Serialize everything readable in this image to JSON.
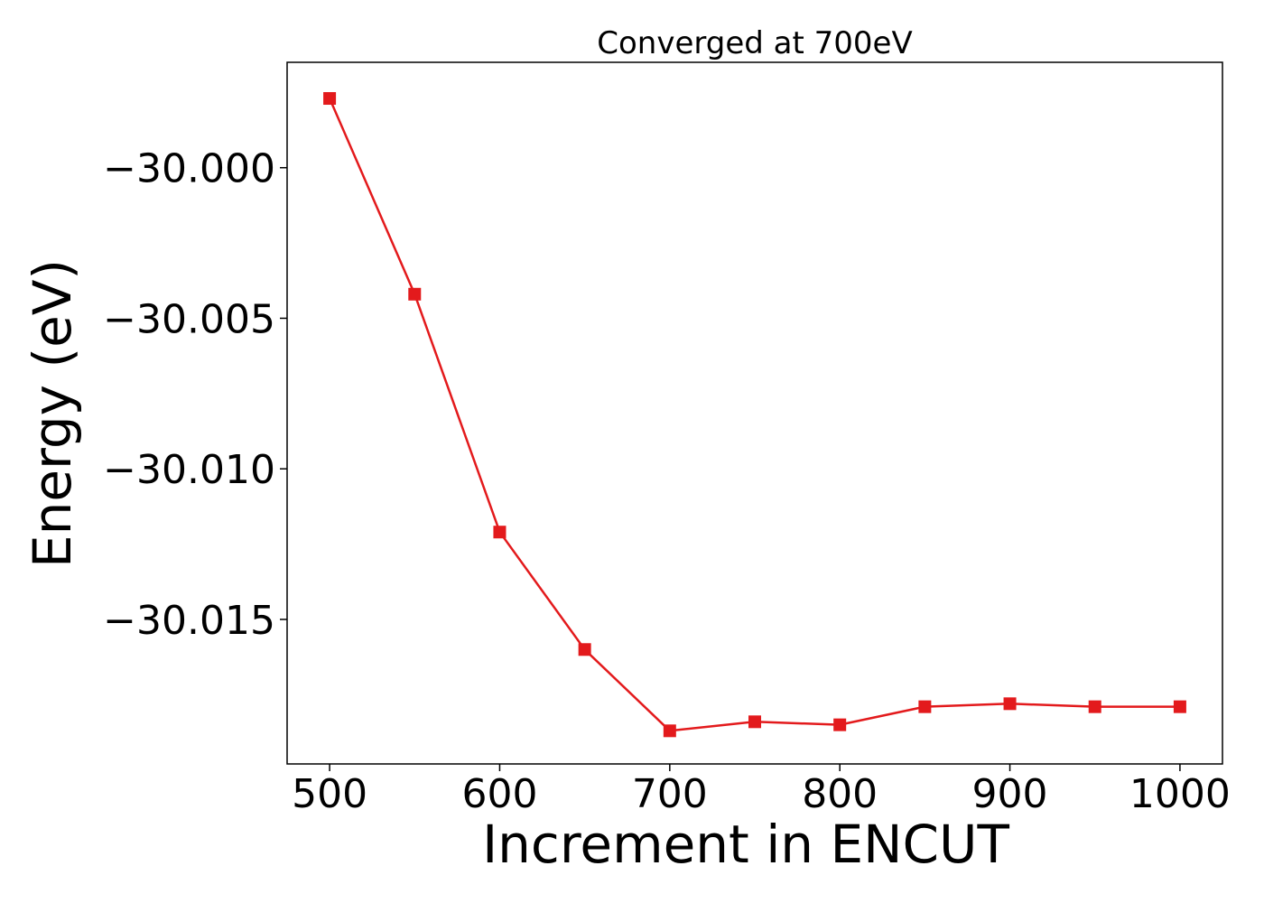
{
  "chart_data": {
    "type": "line",
    "title": "Converged at 700eV",
    "xlabel": "Increment in ENCUT",
    "ylabel": "Energy (eV)",
    "xlim": [
      475,
      1025
    ],
    "ylim": [
      -30.0198,
      -29.9965
    ],
    "xticks": [
      500,
      600,
      700,
      800,
      900,
      1000
    ],
    "xtick_labels": [
      "500",
      "600",
      "700",
      "800",
      "900",
      "1000"
    ],
    "yticks": [
      -30.0,
      -30.005,
      -30.01,
      -30.015
    ],
    "ytick_labels": [
      "−30.000",
      "−30.005",
      "−30.010",
      "−30.015"
    ],
    "grid": false,
    "series": [
      {
        "color": "#e31a1c",
        "marker": "square",
        "x": [
          500,
          550,
          600,
          650,
          700,
          750,
          800,
          850,
          900,
          950,
          1000
        ],
        "y": [
          -29.9977,
          -30.0042,
          -30.0121,
          -30.016,
          -30.0187,
          -30.0184,
          -30.0185,
          -30.0179,
          -30.0178,
          -30.0179,
          -30.0179
        ]
      }
    ]
  }
}
